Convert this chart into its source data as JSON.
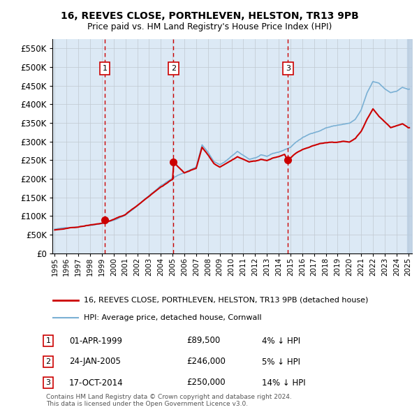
{
  "title1": "16, REEVES CLOSE, PORTHLEVEN, HELSTON, TR13 9PB",
  "title2": "Price paid vs. HM Land Registry's House Price Index (HPI)",
  "ylim": [
    0,
    575000
  ],
  "xlim_start": 1994.8,
  "xlim_end": 2025.3,
  "sale_dates": [
    1999.25,
    2005.07,
    2014.79
  ],
  "sale_prices": [
    89500,
    246000,
    250000
  ],
  "sale_labels": [
    "1",
    "2",
    "3"
  ],
  "sale_info": [
    {
      "label": "1",
      "date": "01-APR-1999",
      "price": "£89,500",
      "hpi": "4% ↓ HPI"
    },
    {
      "label": "2",
      "date": "24-JAN-2005",
      "price": "£246,000",
      "hpi": "5% ↓ HPI"
    },
    {
      "label": "3",
      "date": "17-OCT-2014",
      "price": "£250,000",
      "hpi": "14% ↓ HPI"
    }
  ],
  "legend_labels": [
    "16, REEVES CLOSE, PORTHLEVEN, HELSTON, TR13 9PB (detached house)",
    "HPI: Average price, detached house, Cornwall"
  ],
  "legend_colors": [
    "#cc0000",
    "#7ab0d4"
  ],
  "legend_lws": [
    2.0,
    1.5
  ],
  "footnote": "Contains HM Land Registry data © Crown copyright and database right 2024.\nThis data is licensed under the Open Government Licence v3.0.",
  "plot_bg": "#dce9f5",
  "grid_color": "#c0c8d0",
  "vline_color": "#cc0000",
  "hpi_color": "#7ab0d4",
  "price_color": "#cc0000",
  "hatch_color": "#b8cce0",
  "yticks": [
    0,
    50000,
    100000,
    150000,
    200000,
    250000,
    300000,
    350000,
    400000,
    450000,
    500000,
    550000
  ],
  "xticks": [
    1995,
    1996,
    1997,
    1998,
    1999,
    2000,
    2001,
    2002,
    2003,
    2004,
    2005,
    2006,
    2007,
    2008,
    2009,
    2010,
    2011,
    2012,
    2013,
    2014,
    2015,
    2016,
    2017,
    2018,
    2019,
    2020,
    2021,
    2022,
    2023,
    2024,
    2025
  ]
}
